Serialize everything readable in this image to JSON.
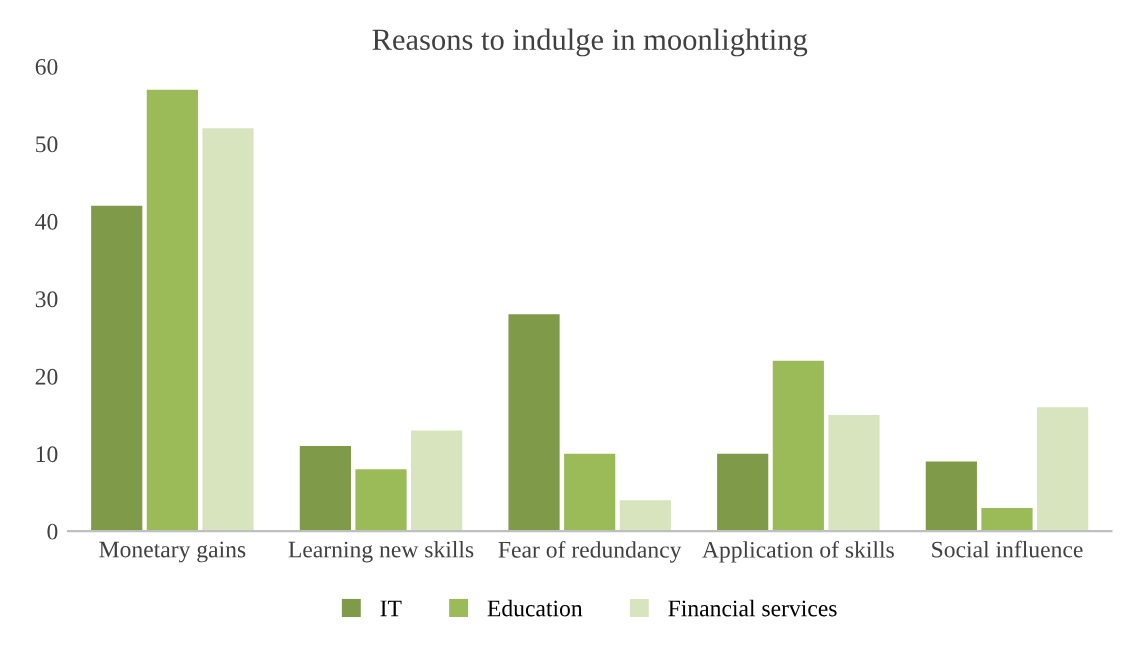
{
  "chart_data": {
    "type": "bar",
    "title": "Reasons to indulge in moonlighting",
    "categories": [
      "Monetary gains",
      "Learning new skills",
      "Fear of redundancy",
      "Application of skills",
      "Social influence"
    ],
    "series": [
      {
        "name": "IT",
        "color": "#7f9a48",
        "values": [
          42,
          11,
          28,
          10,
          9
        ]
      },
      {
        "name": "Education",
        "color": "#9bbb59",
        "values": [
          57,
          8,
          10,
          22,
          3
        ]
      },
      {
        "name": "Financial services",
        "color": "#d7e4bd",
        "values": [
          52,
          13,
          4,
          15,
          16
        ]
      }
    ],
    "ylim": [
      0,
      60
    ],
    "yticks": [
      0,
      10,
      20,
      30,
      40,
      50,
      60
    ],
    "grid": false,
    "legend": "bottom"
  }
}
